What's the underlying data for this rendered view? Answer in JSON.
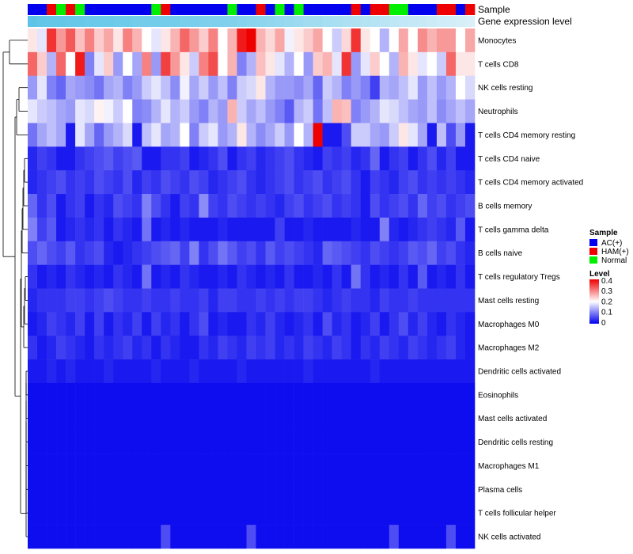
{
  "chart_data": {
    "type": "heatmap",
    "annotations": {
      "sample_label": "Sample",
      "gene_label": "Gene expression level",
      "sample_groups": [
        "AC(+)",
        "AC(+)",
        "HAM(+)",
        "Normal",
        "HAM(+)",
        "Normal",
        "AC(+)",
        "AC(+)",
        "AC(+)",
        "AC(+)",
        "AC(+)",
        "AC(+)",
        "AC(+)",
        "Normal",
        "HAM(+)",
        "AC(+)",
        "AC(+)",
        "AC(+)",
        "AC(+)",
        "AC(+)",
        "AC(+)",
        "Normal",
        "AC(+)",
        "AC(+)",
        "HAM(+)",
        "AC(+)",
        "Normal",
        "AC(+)",
        "Normal",
        "AC(+)",
        "AC(+)",
        "AC(+)",
        "AC(+)",
        "AC(+)",
        "HAM(+)",
        "AC(+)",
        "HAM(+)",
        "HAM(+)",
        "Normal",
        "Normal",
        "AC(+)",
        "AC(+)",
        "AC(+)",
        "HAM(+)",
        "HAM(+)",
        "AC(+)",
        "HAM(+)"
      ],
      "gene_level": [
        0.95,
        0.92,
        0.9,
        0.9,
        0.88,
        0.88,
        0.85,
        0.85,
        0.85,
        0.82,
        0.82,
        0.8,
        0.8,
        0.8,
        0.78,
        0.78,
        0.75,
        0.75,
        0.72,
        0.7,
        0.7,
        0.68,
        0.65,
        0.62,
        0.6,
        0.58,
        0.55,
        0.52,
        0.5,
        0.45,
        0.45,
        0.42,
        0.4,
        0.38,
        0.35,
        0.32,
        0.3,
        0.28,
        0.25,
        0.22,
        0.2,
        0.18,
        0.15,
        0.12,
        0.1,
        0.08,
        0.05
      ]
    },
    "rows": [
      "Monocytes",
      "T cells CD8",
      "NK cells resting",
      "Neutrophils",
      "T cells CD4 memory resting",
      "T cells CD4 naive",
      "T cells CD4 memory activated",
      "B cells memory",
      "T cells gamma delta",
      "B cells naive",
      "T cells regulatory  Tregs",
      "Mast cells resting",
      "Macrophages M0",
      "Macrophages M2",
      "Dendritic cells activated",
      "Eosinophils",
      "Mast cells activated",
      "Dendritic cells resting",
      "Macrophages M1",
      "Plasma cells",
      "T cells follicular helper",
      "NK cells activated"
    ],
    "n_columns": 47,
    "values": [
      [
        0.22,
        0.18,
        0.36,
        0.28,
        0.33,
        0.25,
        0.3,
        0.24,
        0.27,
        0.22,
        0.3,
        0.26,
        0.2,
        0.18,
        0.22,
        0.26,
        0.32,
        0.28,
        0.24,
        0.3,
        0.2,
        0.26,
        0.38,
        0.4,
        0.26,
        0.23,
        0.27,
        0.19,
        0.22,
        0.24,
        0.27,
        0.2,
        0.16,
        0.23,
        0.36,
        0.22,
        0.2,
        0.14,
        0.2,
        0.27,
        0.2,
        0.29,
        0.26,
        0.28,
        0.28,
        0.2,
        0.27
      ],
      [
        0.32,
        0.24,
        0.14,
        0.32,
        0.2,
        0.38,
        0.1,
        0.18,
        0.24,
        0.12,
        0.2,
        0.13,
        0.3,
        0.12,
        0.35,
        0.28,
        0.22,
        0.16,
        0.3,
        0.34,
        0.2,
        0.26,
        0.1,
        0.14,
        0.25,
        0.22,
        0.18,
        0.14,
        0.2,
        0.12,
        0.24,
        0.26,
        0.18,
        0.36,
        0.12,
        0.18,
        0.24,
        0.2,
        0.14,
        0.26,
        0.22,
        0.18,
        0.2,
        0.16,
        0.32,
        0.22,
        0.22
      ],
      [
        0.12,
        0.18,
        0.1,
        0.08,
        0.13,
        0.12,
        0.11,
        0.09,
        0.13,
        0.14,
        0.1,
        0.12,
        0.16,
        0.18,
        0.15,
        0.11,
        0.19,
        0.13,
        0.16,
        0.12,
        0.15,
        0.1,
        0.16,
        0.17,
        0.22,
        0.14,
        0.12,
        0.12,
        0.11,
        0.13,
        0.08,
        0.16,
        0.14,
        0.1,
        0.12,
        0.1,
        0.05,
        0.14,
        0.13,
        0.15,
        0.18,
        0.12,
        0.15,
        0.12,
        0.14,
        0.2,
        0.17
      ],
      [
        0.18,
        0.16,
        0.15,
        0.13,
        0.12,
        0.18,
        0.17,
        0.21,
        0.19,
        0.16,
        0.2,
        0.1,
        0.11,
        0.14,
        0.18,
        0.14,
        0.16,
        0.12,
        0.1,
        0.14,
        0.12,
        0.26,
        0.16,
        0.13,
        0.15,
        0.12,
        0.1,
        0.07,
        0.14,
        0.16,
        0.09,
        0.15,
        0.26,
        0.25,
        0.1,
        0.12,
        0.14,
        0.18,
        0.17,
        0.15,
        0.13,
        0.12,
        0.15,
        0.11,
        0.13,
        0.15,
        0.13
      ],
      [
        0.09,
        0.13,
        0.15,
        0.13,
        0.02,
        0.18,
        0.13,
        0.08,
        0.12,
        0.14,
        0.17,
        0.02,
        0.15,
        0.18,
        0.13,
        0.14,
        0.2,
        0.1,
        0.16,
        0.18,
        0.12,
        0.14,
        0.22,
        0.14,
        0.11,
        0.13,
        0.16,
        0.12,
        0.2,
        0.14,
        0.4,
        0.02,
        0.02,
        0.06,
        0.16,
        0.16,
        0.13,
        0.12,
        0.16,
        0.22,
        0.18,
        0.13,
        0.02,
        0.15,
        0.06,
        0.12,
        0.02
      ],
      [
        0.03,
        0.05,
        0.04,
        0.02,
        0.02,
        0.04,
        0.05,
        0.06,
        0.07,
        0.05,
        0.06,
        0.07,
        0.02,
        0.02,
        0.04,
        0.04,
        0.05,
        0.02,
        0.03,
        0.04,
        0.06,
        0.02,
        0.04,
        0.05,
        0.03,
        0.04,
        0.05,
        0.06,
        0.04,
        0.03,
        0.02,
        0.05,
        0.04,
        0.05,
        0.03,
        0.04,
        0.08,
        0.02,
        0.04,
        0.05,
        0.02,
        0.04,
        0.06,
        0.03,
        0.05,
        0.02,
        0.02
      ],
      [
        0.03,
        0.04,
        0.05,
        0.06,
        0.04,
        0.05,
        0.04,
        0.06,
        0.05,
        0.04,
        0.06,
        0.03,
        0.05,
        0.04,
        0.06,
        0.05,
        0.04,
        0.06,
        0.05,
        0.03,
        0.04,
        0.05,
        0.06,
        0.04,
        0.03,
        0.04,
        0.05,
        0.06,
        0.04,
        0.05,
        0.06,
        0.04,
        0.05,
        0.06,
        0.04,
        0.02,
        0.05,
        0.04,
        0.03,
        0.05,
        0.06,
        0.04,
        0.05,
        0.04,
        0.05,
        0.04,
        0.03
      ],
      [
        0.08,
        0.04,
        0.06,
        0.02,
        0.04,
        0.05,
        0.02,
        0.04,
        0.03,
        0.06,
        0.05,
        0.04,
        0.1,
        0.06,
        0.04,
        0.02,
        0.05,
        0.04,
        0.11,
        0.05,
        0.04,
        0.06,
        0.05,
        0.04,
        0.05,
        0.04,
        0.03,
        0.05,
        0.06,
        0.04,
        0.05,
        0.06,
        0.04,
        0.05,
        0.04,
        0.02,
        0.06,
        0.04,
        0.05,
        0.06,
        0.04,
        0.08,
        0.05,
        0.06,
        0.04,
        0.05,
        0.06
      ],
      [
        0.1,
        0.05,
        0.07,
        0.02,
        0.03,
        0.04,
        0.03,
        0.04,
        0.02,
        0.04,
        0.03,
        0.02,
        0.09,
        0.02,
        0.03,
        0.02,
        0.03,
        0.02,
        0.02,
        0.02,
        0.03,
        0.02,
        0.02,
        0.02,
        0.02,
        0.02,
        0.05,
        0.02,
        0.02,
        0.03,
        0.02,
        0.02,
        0.02,
        0.02,
        0.03,
        0.02,
        0.02,
        0.1,
        0.03,
        0.02,
        0.03,
        0.04,
        0.05,
        0.04,
        0.03,
        0.07,
        0.02
      ],
      [
        0.06,
        0.08,
        0.06,
        0.05,
        0.07,
        0.04,
        0.05,
        0.06,
        0.03,
        0.02,
        0.03,
        0.04,
        0.05,
        0.06,
        0.07,
        0.08,
        0.05,
        0.1,
        0.04,
        0.06,
        0.09,
        0.07,
        0.05,
        0.06,
        0.04,
        0.07,
        0.05,
        0.06,
        0.05,
        0.04,
        0.03,
        0.08,
        0.07,
        0.06,
        0.05,
        0.04,
        0.06,
        0.05,
        0.04,
        0.05,
        0.07,
        0.06,
        0.08,
        0.05,
        0.06,
        0.04,
        0.03
      ],
      [
        0.04,
        0.02,
        0.03,
        0.02,
        0.04,
        0.03,
        0.02,
        0.03,
        0.02,
        0.04,
        0.03,
        0.02,
        0.09,
        0.02,
        0.03,
        0.02,
        0.04,
        0.03,
        0.02,
        0.02,
        0.03,
        0.02,
        0.04,
        0.03,
        0.02,
        0.03,
        0.02,
        0.04,
        0.02,
        0.02,
        0.03,
        0.02,
        0.04,
        0.02,
        0.09,
        0.04,
        0.02,
        0.03,
        0.02,
        0.04,
        0.02,
        0.07,
        0.02,
        0.03,
        0.02,
        0.04,
        0.02
      ],
      [
        0.03,
        0.04,
        0.04,
        0.04,
        0.05,
        0.05,
        0.04,
        0.05,
        0.06,
        0.05,
        0.04,
        0.04,
        0.05,
        0.04,
        0.04,
        0.05,
        0.04,
        0.04,
        0.05,
        0.03,
        0.05,
        0.05,
        0.04,
        0.04,
        0.05,
        0.04,
        0.05,
        0.04,
        0.05,
        0.05,
        0.04,
        0.03,
        0.04,
        0.05,
        0.04,
        0.04,
        0.03,
        0.05,
        0.04,
        0.04,
        0.05,
        0.04,
        0.04,
        0.04,
        0.04,
        0.04,
        0.04
      ],
      [
        0.02,
        0.03,
        0.05,
        0.04,
        0.03,
        0.05,
        0.02,
        0.05,
        0.02,
        0.04,
        0.03,
        0.05,
        0.02,
        0.05,
        0.03,
        0.04,
        0.02,
        0.04,
        0.06,
        0.02,
        0.03,
        0.02,
        0.02,
        0.04,
        0.03,
        0.05,
        0.03,
        0.02,
        0.03,
        0.04,
        0.02,
        0.06,
        0.03,
        0.04,
        0.02,
        0.03,
        0.05,
        0.02,
        0.04,
        0.06,
        0.03,
        0.05,
        0.03,
        0.02,
        0.04,
        0.03,
        0.02
      ],
      [
        0.04,
        0.02,
        0.03,
        0.05,
        0.04,
        0.03,
        0.02,
        0.04,
        0.03,
        0.04,
        0.05,
        0.03,
        0.04,
        0.02,
        0.04,
        0.03,
        0.02,
        0.02,
        0.04,
        0.03,
        0.05,
        0.04,
        0.03,
        0.05,
        0.04,
        0.05,
        0.03,
        0.04,
        0.03,
        0.05,
        0.04,
        0.03,
        0.05,
        0.04,
        0.02,
        0.04,
        0.03,
        0.05,
        0.04,
        0.03,
        0.05,
        0.04,
        0.03,
        0.04,
        0.05,
        0.03,
        0.02
      ],
      [
        0.02,
        0.02,
        0.03,
        0.02,
        0.03,
        0.02,
        0.02,
        0.02,
        0.03,
        0.02,
        0.02,
        0.02,
        0.02,
        0.03,
        0.02,
        0.02,
        0.02,
        0.03,
        0.02,
        0.02,
        0.02,
        0.02,
        0.03,
        0.02,
        0.02,
        0.02,
        0.02,
        0.02,
        0.02,
        0.03,
        0.02,
        0.02,
        0.02,
        0.02,
        0.02,
        0.02,
        0.03,
        0.02,
        0.02,
        0.02,
        0.02,
        0.02,
        0.02,
        0.02,
        0.02,
        0.02,
        0.02
      ],
      [
        0.01,
        0.01,
        0.01,
        0.01,
        0.01,
        0.01,
        0.01,
        0.01,
        0.01,
        0.01,
        0.01,
        0.01,
        0.01,
        0.01,
        0.01,
        0.01,
        0.01,
        0.01,
        0.01,
        0.01,
        0.01,
        0.01,
        0.01,
        0.01,
        0.01,
        0.01,
        0.01,
        0.01,
        0.01,
        0.01,
        0.01,
        0.01,
        0.01,
        0.01,
        0.01,
        0.01,
        0.01,
        0.01,
        0.01,
        0.01,
        0.01,
        0.01,
        0.01,
        0.01,
        0.01,
        0.01,
        0.01
      ],
      [
        0.01,
        0.01,
        0.01,
        0.01,
        0.01,
        0.01,
        0.01,
        0.01,
        0.01,
        0.01,
        0.01,
        0.01,
        0.01,
        0.01,
        0.01,
        0.01,
        0.01,
        0.01,
        0.01,
        0.01,
        0.01,
        0.01,
        0.01,
        0.01,
        0.01,
        0.01,
        0.01,
        0.01,
        0.01,
        0.01,
        0.01,
        0.01,
        0.01,
        0.01,
        0.01,
        0.01,
        0.01,
        0.01,
        0.01,
        0.01,
        0.01,
        0.01,
        0.01,
        0.01,
        0.01,
        0.01,
        0.01
      ],
      [
        0.01,
        0.01,
        0.01,
        0.01,
        0.01,
        0.01,
        0.01,
        0.01,
        0.01,
        0.01,
        0.01,
        0.01,
        0.01,
        0.01,
        0.01,
        0.01,
        0.01,
        0.01,
        0.01,
        0.01,
        0.01,
        0.01,
        0.01,
        0.01,
        0.01,
        0.01,
        0.01,
        0.01,
        0.01,
        0.01,
        0.01,
        0.01,
        0.01,
        0.01,
        0.01,
        0.01,
        0.01,
        0.01,
        0.01,
        0.01,
        0.01,
        0.01,
        0.01,
        0.01,
        0.01,
        0.01,
        0.01
      ],
      [
        0.01,
        0.01,
        0.01,
        0.01,
        0.01,
        0.01,
        0.01,
        0.01,
        0.01,
        0.01,
        0.01,
        0.01,
        0.01,
        0.01,
        0.01,
        0.01,
        0.01,
        0.01,
        0.01,
        0.01,
        0.01,
        0.01,
        0.01,
        0.01,
        0.01,
        0.01,
        0.01,
        0.01,
        0.01,
        0.01,
        0.01,
        0.01,
        0.01,
        0.01,
        0.01,
        0.01,
        0.01,
        0.01,
        0.01,
        0.01,
        0.01,
        0.01,
        0.01,
        0.01,
        0.01,
        0.01,
        0.01
      ],
      [
        0.01,
        0.01,
        0.01,
        0.01,
        0.01,
        0.01,
        0.01,
        0.01,
        0.01,
        0.01,
        0.01,
        0.01,
        0.01,
        0.01,
        0.01,
        0.01,
        0.01,
        0.01,
        0.01,
        0.01,
        0.01,
        0.01,
        0.01,
        0.01,
        0.01,
        0.01,
        0.01,
        0.01,
        0.01,
        0.01,
        0.01,
        0.01,
        0.01,
        0.01,
        0.01,
        0.01,
        0.01,
        0.01,
        0.01,
        0.01,
        0.01,
        0.01,
        0.01,
        0.01,
        0.01,
        0.01,
        0.01
      ],
      [
        0.01,
        0.01,
        0.01,
        0.01,
        0.01,
        0.01,
        0.01,
        0.01,
        0.01,
        0.01,
        0.01,
        0.01,
        0.01,
        0.01,
        0.01,
        0.01,
        0.01,
        0.01,
        0.01,
        0.01,
        0.01,
        0.01,
        0.01,
        0.01,
        0.01,
        0.01,
        0.01,
        0.01,
        0.01,
        0.01,
        0.01,
        0.01,
        0.01,
        0.01,
        0.01,
        0.01,
        0.01,
        0.01,
        0.01,
        0.01,
        0.01,
        0.01,
        0.01,
        0.01,
        0.01,
        0.01,
        0.01
      ],
      [
        0.01,
        0.01,
        0.01,
        0.01,
        0.01,
        0.01,
        0.01,
        0.01,
        0.01,
        0.01,
        0.01,
        0.01,
        0.01,
        0.01,
        0.06,
        0.01,
        0.01,
        0.01,
        0.01,
        0.01,
        0.01,
        0.01,
        0.01,
        0.06,
        0.01,
        0.01,
        0.01,
        0.01,
        0.01,
        0.01,
        0.01,
        0.01,
        0.01,
        0.01,
        0.01,
        0.01,
        0.01,
        0.01,
        0.06,
        0.01,
        0.01,
        0.01,
        0.01,
        0.01,
        0.06,
        0.01,
        0.01
      ]
    ],
    "legend": {
      "sample_title": "Sample",
      "sample_items": [
        {
          "label": "AC(+)",
          "color": "#0000ee"
        },
        {
          "label": "HAM(+)",
          "color": "#ee0000"
        },
        {
          "label": "Normal",
          "color": "#00ee00"
        }
      ],
      "level_title": "Level",
      "level_ticks": [
        "0.4",
        "0.3",
        "0.2",
        "0.1",
        "0"
      ],
      "level_range": [
        0,
        0.4
      ]
    },
    "colors": {
      "low": "#0000ee",
      "mid": "#ffffff",
      "high": "#ee0000",
      "gene_low": "#e0f2fa",
      "gene_high": "#56c2e6"
    }
  }
}
